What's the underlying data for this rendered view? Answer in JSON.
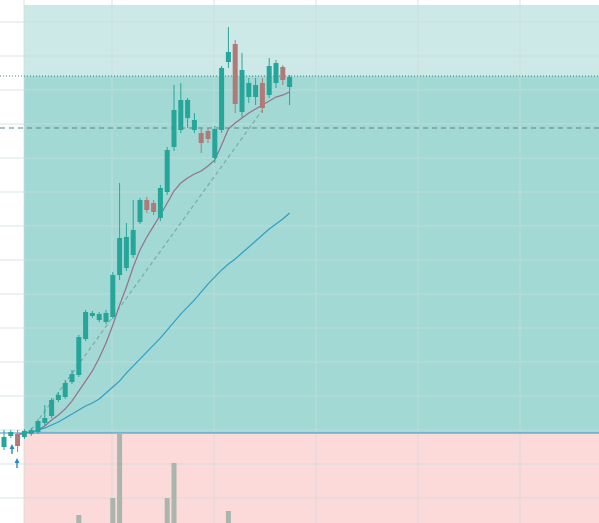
{
  "chart_data": {
    "type": "candlestick",
    "ylim": [
      0,
      523
    ],
    "open": [
      76,
      87,
      89,
      86,
      89,
      91,
      100,
      107,
      123,
      126,
      141,
      148,
      184,
      207,
      203,
      201,
      206,
      248,
      255,
      268,
      301,
      323,
      320,
      305,
      331,
      376,
      393,
      405,
      393,
      390,
      392,
      365,
      393,
      461,
      479,
      411,
      426,
      426,
      440,
      428,
      440,
      456,
      436
    ],
    "high": [
      93,
      93,
      93,
      94,
      95,
      104,
      118,
      125,
      131,
      143,
      153,
      188,
      213,
      212,
      211,
      213,
      251,
      340,
      300,
      323,
      325,
      326,
      323,
      338,
      376,
      438,
      440,
      425,
      410,
      395,
      395,
      397,
      457,
      496,
      483,
      470,
      445,
      445,
      445,
      465,
      463,
      458,
      448
    ],
    "low": [
      73,
      85,
      71,
      84,
      87,
      89,
      97,
      105,
      121,
      124,
      139,
      146,
      182,
      205,
      201,
      199,
      204,
      243,
      252,
      265,
      299,
      310,
      308,
      302,
      328,
      372,
      390,
      395,
      390,
      370,
      380,
      360,
      390,
      455,
      410,
      405,
      420,
      418,
      410,
      425,
      435,
      438,
      418
    ],
    "close": [
      86,
      91,
      77,
      92,
      93,
      102,
      105,
      123,
      128,
      140,
      149,
      186,
      211,
      210,
      209,
      210,
      248,
      285,
      286,
      293,
      323,
      313,
      311,
      335,
      373,
      413,
      423,
      423,
      403,
      380,
      384,
      394,
      455,
      471,
      419,
      453,
      440,
      438,
      415,
      457,
      460,
      443,
      446
    ],
    "up_color": "#26a69a",
    "down_color": "#b07a78",
    "volume": [
      0,
      0,
      0,
      0,
      0,
      0,
      0,
      0,
      0,
      0,
      0,
      8,
      0,
      0,
      0,
      0,
      25,
      90,
      0,
      0,
      0,
      0,
      0,
      0,
      25,
      60,
      0,
      0,
      0,
      0,
      0,
      0,
      0,
      12,
      0,
      0,
      0,
      0,
      0,
      0,
      0,
      0,
      0
    ],
    "volume_color": "#a9b5ad",
    "series": [
      {
        "color": "#95708c",
        "values": [
          null,
          null,
          88,
          90,
          91,
          93,
          97,
          103,
          108,
          114,
          122,
          132,
          142,
          152,
          165,
          180,
          198,
          218,
          236,
          256,
          273,
          286,
          297,
          308,
          320,
          332,
          340,
          345,
          349,
          352,
          357,
          363,
          378,
          394,
          400,
          405,
          410,
          414,
          418,
          422,
          426,
          428,
          431
        ]
      },
      {
        "color": "#2e9fc6",
        "values": [
          null,
          null,
          null,
          90,
          91,
          93,
          95,
          98,
          101,
          105,
          109,
          113,
          117,
          120,
          124,
          130,
          136,
          142,
          150,
          157,
          164,
          171,
          178,
          185,
          193,
          201,
          209,
          216,
          223,
          231,
          239,
          246,
          253,
          259,
          264,
          270,
          276,
          282,
          288,
          294,
          299,
          304,
          310
        ]
      }
    ],
    "trend_line": {
      "from": [
        4,
        93
      ],
      "to": [
        38,
        413
      ],
      "color": "#7fa8a4"
    },
    "levels": {
      "top": 518,
      "upper": 447,
      "mid": 395,
      "base": 90
    }
  }
}
